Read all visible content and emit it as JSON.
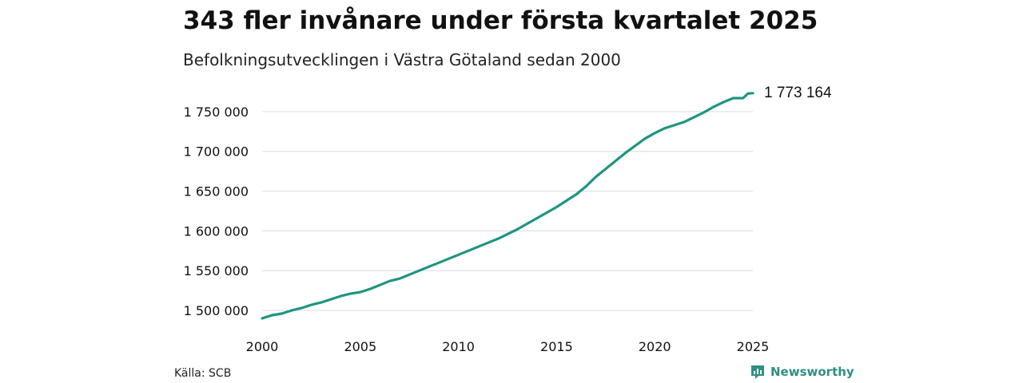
{
  "page": {
    "title": "343 fler invånare under första kvartalet 2025",
    "subtitle": "Befolkningsutvecklingen i Västra Götaland sedan 2000",
    "source": "Källa: SCB",
    "brand": "Newsworthy"
  },
  "colors": {
    "line": "#1f9580",
    "grid": "#dde1e6",
    "text": "#111111",
    "brand": "#2f8f83"
  },
  "chart_data": {
    "type": "line",
    "title": "343 fler invånare under första kvartalet 2025",
    "subtitle": "Befolkningsutvecklingen i Västra Götaland sedan 2000",
    "xlabel": "",
    "ylabel": "",
    "xlim": [
      2000,
      2025
    ],
    "ylim": [
      1485000,
      1775000
    ],
    "x_ticks": [
      2000,
      2005,
      2010,
      2015,
      2020,
      2025
    ],
    "y_ticks": [
      1500000,
      1550000,
      1600000,
      1650000,
      1700000,
      1750000
    ],
    "y_tick_labels": [
      "1 500 000",
      "1 550 000",
      "1 600 000",
      "1 650 000",
      "1 700 000",
      "1 750 000"
    ],
    "grid": true,
    "legend": "none",
    "end_label": "1 773 164",
    "series": [
      {
        "x": [
          2000.0,
          2000.5,
          2001.0,
          2001.5,
          2002.0,
          2002.5,
          2003.0,
          2003.5,
          2004.0,
          2004.5,
          2005.0,
          2005.5,
          2006.0,
          2006.5,
          2007.0,
          2007.5,
          2008.0,
          2008.5,
          2009.0,
          2009.5,
          2010.0,
          2010.5,
          2011.0,
          2011.5,
          2012.0,
          2012.5,
          2013.0,
          2013.5,
          2014.0,
          2014.5,
          2015.0,
          2015.5,
          2016.0,
          2016.5,
          2017.0,
          2017.5,
          2018.0,
          2018.5,
          2019.0,
          2019.5,
          2020.0,
          2020.5,
          2021.0,
          2021.5,
          2022.0,
          2022.5,
          2023.0,
          2023.5,
          2024.0,
          2024.5,
          2024.75,
          2025.0
        ],
        "values": [
          1490000,
          1494000,
          1496000,
          1500000,
          1503000,
          1507000,
          1510000,
          1514000,
          1518000,
          1521000,
          1523000,
          1527000,
          1532000,
          1537000,
          1540000,
          1545000,
          1550000,
          1555000,
          1560000,
          1565000,
          1570000,
          1575000,
          1580000,
          1585000,
          1590000,
          1596000,
          1602000,
          1609000,
          1616000,
          1623000,
          1630000,
          1638000,
          1646000,
          1656000,
          1668000,
          1678000,
          1688000,
          1698000,
          1707000,
          1716000,
          1723000,
          1729000,
          1733000,
          1737000,
          1743000,
          1749000,
          1756000,
          1762000,
          1767000,
          1767000,
          1772800,
          1773164
        ]
      }
    ]
  }
}
